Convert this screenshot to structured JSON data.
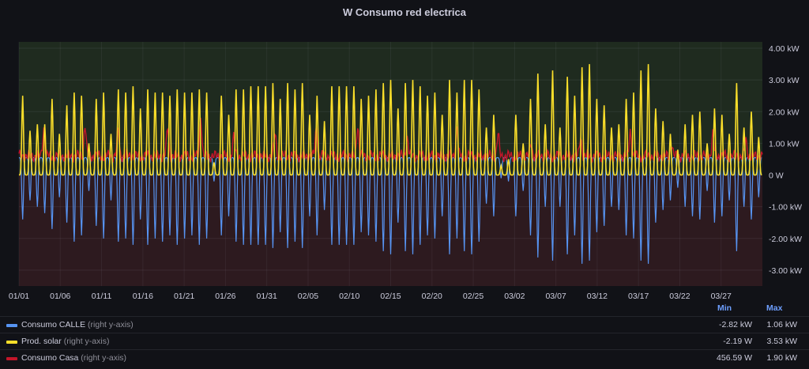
{
  "panel": {
    "title": "W Consumo red electrica"
  },
  "legend": {
    "min_header": "Min",
    "max_header": "Max",
    "axis_suffix": "(right y-axis)",
    "items": [
      {
        "name": "Consumo CALLE",
        "min": "-2.82 kW",
        "max": "1.06 kW",
        "color": "#5794f2"
      },
      {
        "name": "Prod. solar",
        "min": "-2.19 W",
        "max": "3.53 kW",
        "color": "#fade2a"
      },
      {
        "name": "Consumo Casa",
        "min": "456.59 W",
        "max": "1.90 kW",
        "color": "#c4162a"
      }
    ]
  },
  "chart_data": {
    "type": "line",
    "x_tick_labels": [
      "01/01",
      "01/06",
      "01/11",
      "01/16",
      "01/21",
      "01/26",
      "01/31",
      "02/05",
      "02/10",
      "02/15",
      "02/20",
      "02/25",
      "03/02",
      "03/07",
      "03/12",
      "03/17",
      "03/22",
      "03/27"
    ],
    "y_tick_labels": [
      "4.00 kW",
      "3.00 kW",
      "2.00 kW",
      "1.00 kW",
      "0 W",
      "-1.00 kW",
      "-2.00 kW",
      "-3.00 kW"
    ],
    "y_tick_values": [
      4,
      3,
      2,
      1,
      0,
      -1,
      -2,
      -3
    ],
    "y_axis_side": "right",
    "ylim": [
      -3.5,
      4.2
    ],
    "x_range_days": [
      0,
      90
    ],
    "threshold_fills": {
      "above_zero": "#1f2b1f",
      "below_zero": "#2d1a1f"
    },
    "grid": true,
    "series": [
      {
        "name": "Prod. solar",
        "color": "#fade2a",
        "daily_peak_kw": [
          2.5,
          1.4,
          1.6,
          1.6,
          2.4,
          1.3,
          2.2,
          2.6,
          2.5,
          1.0,
          2.4,
          2.6,
          1.3,
          2.7,
          2.6,
          2.8,
          2.1,
          2.7,
          2.6,
          2.6,
          2.5,
          2.7,
          2.6,
          2.6,
          2.7,
          2.6,
          0.4,
          2.5,
          1.9,
          2.7,
          2.7,
          2.8,
          2.8,
          2.8,
          2.9,
          2.4,
          2.9,
          2.7,
          2.9,
          1.9,
          2.5,
          1.7,
          2.8,
          2.8,
          2.8,
          2.8,
          2.4,
          2.5,
          2.7,
          2.9,
          3.0,
          2.1,
          2.9,
          3.0,
          2.8,
          2.5,
          2.6,
          1.9,
          3.0,
          2.6,
          3.0,
          3.0,
          2.7,
          1.5,
          1.9,
          0.3,
          0.5,
          1.9,
          1.0,
          2.4,
          3.2,
          1.6,
          3.3,
          1.5,
          3.1,
          2.5,
          3.4,
          3.5,
          2.4,
          2.2,
          1.5,
          1.6,
          2.4,
          2.6,
          3.3,
          3.5,
          2.1,
          1.7,
          1.3,
          0.8,
          1.6,
          1.9,
          2.0,
          1.0,
          2.1,
          1.9,
          1.3,
          2.9,
          1.5,
          2.0,
          1.2
        ]
      },
      {
        "name": "Consumo CALLE",
        "color": "#5794f2",
        "daily_min_kw": [
          -1.4,
          -0.8,
          -1.0,
          -1.2,
          -1.7,
          -0.7,
          -1.5,
          -2.1,
          -1.9,
          -0.5,
          -1.6,
          -2.0,
          -0.8,
          -2.1,
          -2.0,
          -2.2,
          -1.4,
          -2.2,
          -2.0,
          -2.1,
          -1.9,
          -2.2,
          -2.0,
          -1.9,
          -2.2,
          -2.0,
          -0.2,
          -1.9,
          -1.3,
          -2.1,
          -2.2,
          -2.2,
          -2.2,
          -2.2,
          -2.3,
          -1.8,
          -2.3,
          -2.1,
          -2.3,
          -1.3,
          -1.9,
          -1.1,
          -2.2,
          -2.2,
          -2.2,
          -2.2,
          -1.8,
          -1.9,
          -2.1,
          -2.4,
          -2.5,
          -1.5,
          -2.4,
          -2.5,
          -2.2,
          -1.9,
          -2.0,
          -1.3,
          -2.5,
          -2.0,
          -2.4,
          -2.5,
          -2.1,
          -0.9,
          -1.3,
          -0.1,
          -0.2,
          -1.3,
          -0.5,
          -1.9,
          -2.6,
          -1.0,
          -2.7,
          -1.0,
          -2.5,
          -1.9,
          -2.8,
          -2.7,
          -1.8,
          -1.6,
          -1.0,
          -1.1,
          -1.9,
          -2.0,
          -2.7,
          -2.8,
          -1.5,
          -1.1,
          -0.8,
          -0.4,
          -1.0,
          -1.3,
          -1.4,
          -0.5,
          -1.5,
          -1.3,
          -0.8,
          -2.4,
          -1.0,
          -1.4,
          -0.7
        ]
      },
      {
        "name": "Consumo Casa",
        "color": "#c4162a",
        "base_kw": 0.6,
        "spike_days": [
          3,
          8,
          12,
          18,
          22,
          26,
          31,
          36,
          41,
          47,
          53,
          58,
          62,
          68,
          74,
          79,
          84,
          88
        ],
        "spike_kw": [
          1.5,
          1.6,
          1.4,
          1.5,
          1.9,
          1.2,
          1.3,
          1.5,
          1.6,
          1.2,
          1.5,
          1.3,
          1.0,
          1.2,
          1.4,
          1.0,
          1.3,
          1.1
        ]
      }
    ]
  }
}
